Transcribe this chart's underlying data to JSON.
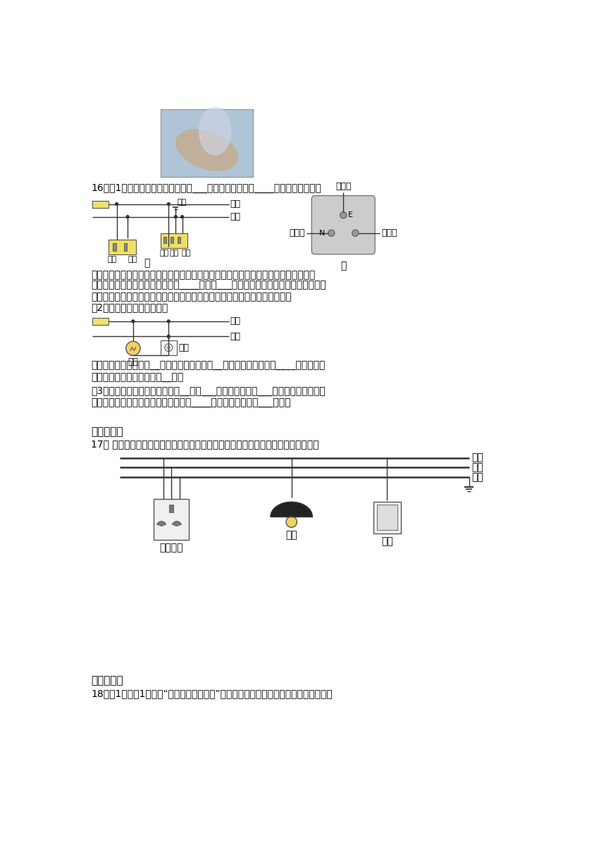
{
  "bg_color": "#ffffff",
  "text_color": "#000000",
  "line_color": "#333333",
  "q16_text": "16．（1）插座种类：常见的插座有___插座（甲图左）和____插座（甲图右）。",
  "install_text1": "安装：把三脚插头插在三孔插座里，在把用电部分连入电路的同时，也把用电器的金属",
  "install_text2": "外壳与大地连接起来，防止了外壳____引起的___事故。（万一用电器的外壳和电源火",
  "install_text3": "线之间的绵缘损坏，使外壳带电，电流就会流入大地，不致对人造成伤害。）",
  "q2_text": "（2）用电器（电灯）和开关",
  "family_text1": "家庭电路中各用电器是__联的。开关和用电器__联，开关必须串联在____中。与灯泡",
  "family_text2": "的灯座螺丝口相接的必须是__线。",
  "q3_text": "（3）测电笔：用试电笔可以辨别__线和___线。使用时笔尖___被测的导线，手必须",
  "q3_text2": "接触笔尾的金属体。用试电笔测火线时____会发光；测零线时___发光。",
  "section4_title": "四、作图题",
  "q17_text": "17． 请将如图所示的电灯、开关和三孔插座正确接入家庭电路中，开关需控制电灯。",
  "wire_labels": [
    "火线",
    "零线",
    "地线"
  ],
  "device_labels": [
    "三孔插座",
    "灯泡",
    "开关"
  ],
  "section5_title": "五、实验题",
  "q18_text": "18．（1）如图1是研究“短路引起熔丝熔断”的实验，电路熔断器中的熔丝应该选用熔点"
}
